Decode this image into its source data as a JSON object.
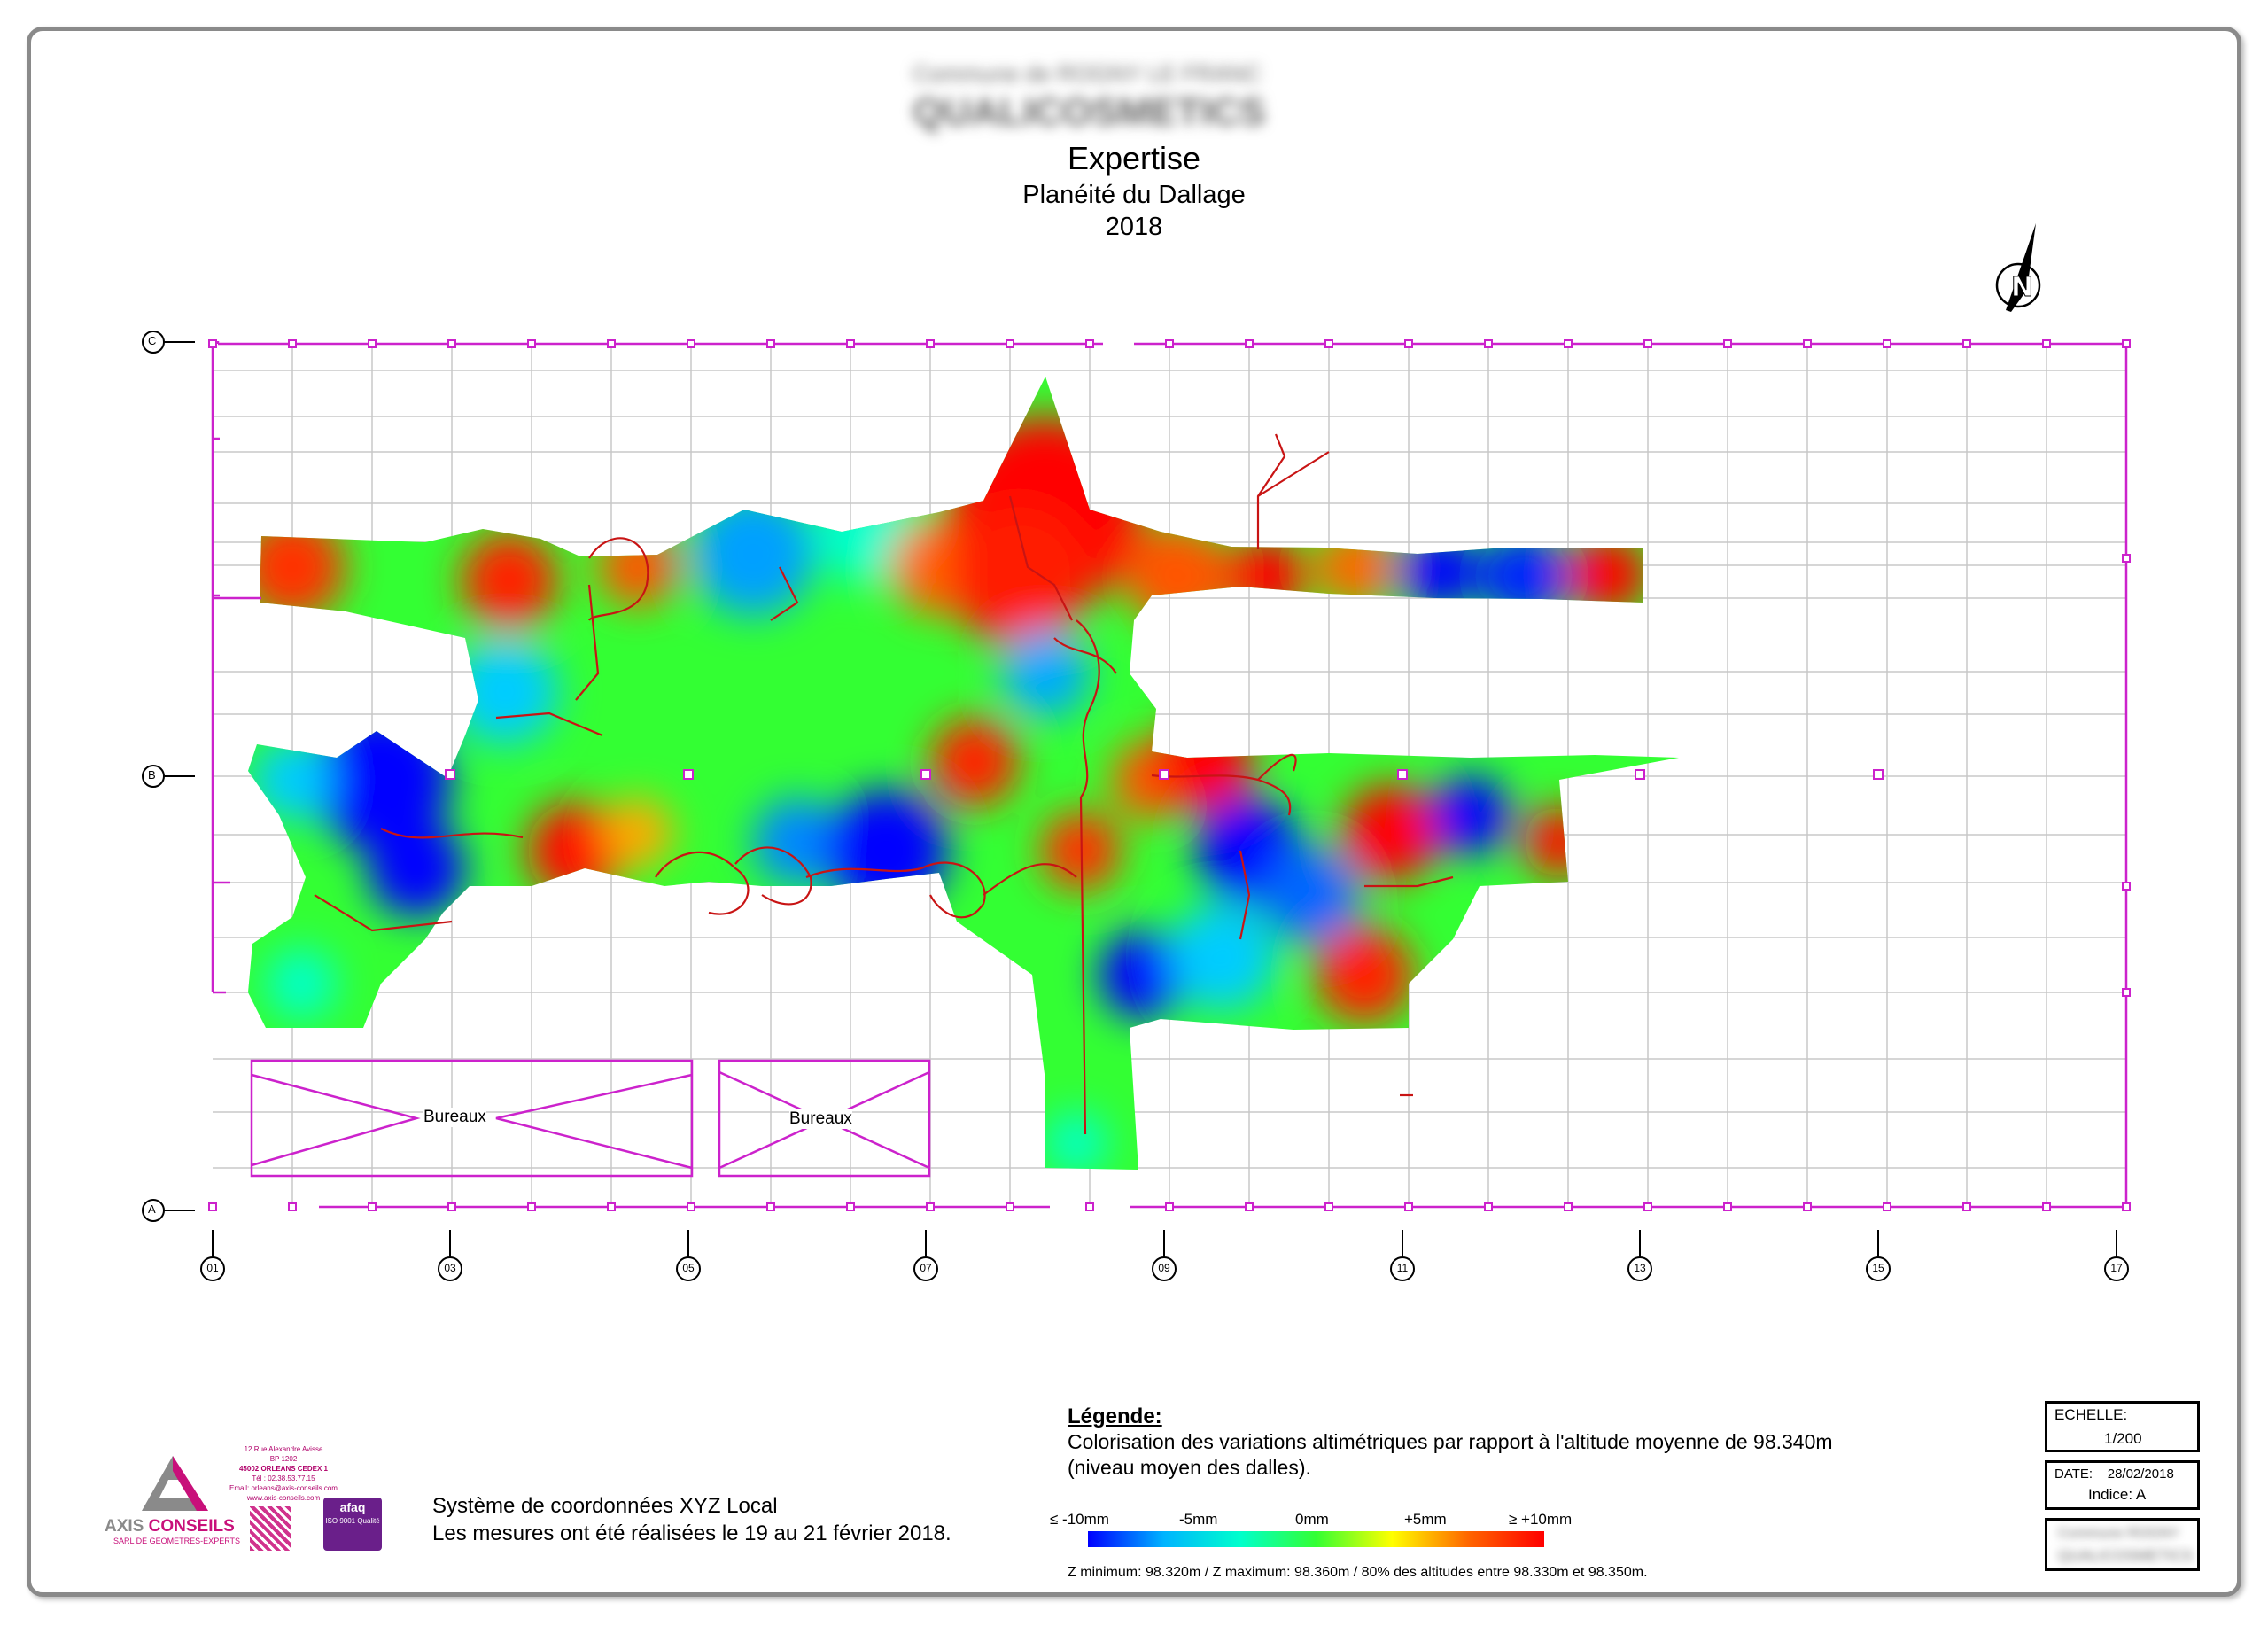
{
  "header": {
    "blurred_line1": "Commune de ROGNY LE FRANC",
    "blurred_line2": "QUALICOSMETICS",
    "title": "Expertise",
    "subtitle": "Planéité du Dallage",
    "year": "2018"
  },
  "plan": {
    "row_axes": [
      "C",
      "B",
      "A"
    ],
    "column_axes": [
      "01",
      "03",
      "05",
      "07",
      "09",
      "11",
      "13",
      "15",
      "17"
    ],
    "rooms": [
      {
        "label": "Bureaux"
      },
      {
        "label": "Bureaux"
      }
    ],
    "north_arrow": "north-arrow-icon"
  },
  "legend": {
    "title": "Légende:",
    "line1": "Colorisation des variations altimétriques par rapport à l'altitude moyenne de 98.340m",
    "line2": "(niveau moyen des dalles).",
    "ticks": [
      "≤ -10mm",
      "-5mm",
      "0mm",
      "+5mm",
      "≥ +10mm"
    ],
    "colors": [
      "#0000ff",
      "#00b4ff",
      "#00ffcc",
      "#33ff33",
      "#ffff00",
      "#ff6600",
      "#ff0000"
    ],
    "zminmax": "Z minimum: 98.320m / Z maximum: 98.360m / 80% des altitudes entre 98.330m et 98.350m."
  },
  "coordinates": {
    "line1": "Système de coordonnées XYZ Local",
    "line2": "Les mesures ont été réalisées le 19 au 21 février 2018."
  },
  "title_block": {
    "scale_label": "ECHELLE:",
    "scale_value": "1/200",
    "date_line": "DATE:    28/02/2018",
    "index_line": "Indice: A",
    "blurred_line1": "Commune ROGNY",
    "blurred_line2": "QUALICOSMETICS"
  },
  "company": {
    "address_lines": [
      "12 Rue Alexandre Avisse",
      "BP 1202",
      "45002 ORLEANS CEDEX 1",
      "Tél : 02.38.53.77.15",
      "Email: orleans@axis-conseils.com",
      "www.axis-conseils.com"
    ],
    "name_part1": "AXIS ",
    "name_part2": "CONSEILS",
    "tagline": "SARL DE GEOMETRES-EXPERTS",
    "afaq": "afaq",
    "afaq_sub": "ISO 9001 Qualité"
  }
}
